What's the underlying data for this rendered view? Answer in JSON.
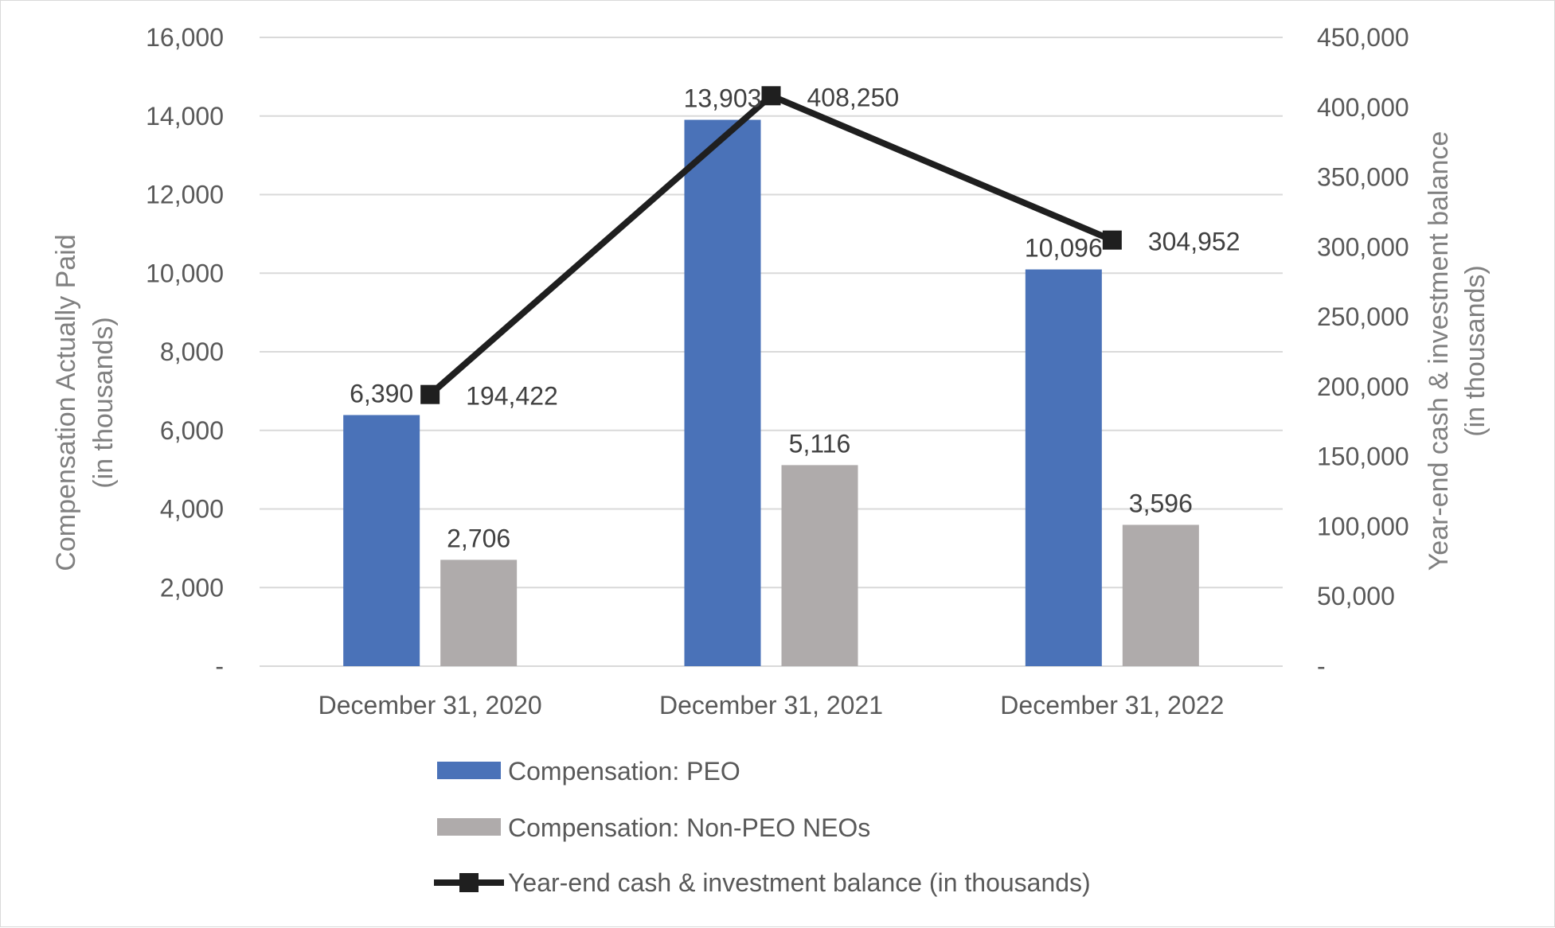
{
  "chart_data": {
    "type": "bar+line",
    "categories": [
      "December 31, 2020",
      "December 31, 2021",
      "December 31, 2022"
    ],
    "series": [
      {
        "name": "Compensation: PEO",
        "kind": "bar",
        "axis": "left",
        "color": "#4a72b8",
        "values": [
          6390,
          13903,
          10096
        ],
        "labels": [
          "6,390",
          "13,903",
          "10,096"
        ]
      },
      {
        "name": "Compensation: Non-PEO NEOs",
        "kind": "bar",
        "axis": "left",
        "color": "#afabab",
        "values": [
          2706,
          5116,
          3596
        ],
        "labels": [
          "2,706",
          "5,116",
          "3,596"
        ]
      },
      {
        "name": "Year-end cash & investment balance (in thousands)",
        "kind": "line",
        "axis": "right",
        "color": "#1f1f1f",
        "values": [
          194422,
          408250,
          304952
        ],
        "labels": [
          "194,422",
          "408,250",
          "304,952"
        ]
      }
    ],
    "left_axis": {
      "title_line1": "Compensation Actually Paid",
      "title_line2": "(in thousands)",
      "range": [
        0,
        16000
      ],
      "ticks": [
        0,
        2000,
        4000,
        6000,
        8000,
        10000,
        12000,
        14000,
        16000
      ],
      "tick_labels": [
        "-",
        "2,000",
        "4,000",
        "6,000",
        "8,000",
        "10,000",
        "12,000",
        "14,000",
        "16,000"
      ]
    },
    "right_axis": {
      "title_line1": "Year-end cash & investment balance",
      "title_line2": "(in thousands)",
      "range": [
        0,
        450000
      ],
      "ticks": [
        0,
        50000,
        100000,
        150000,
        200000,
        250000,
        300000,
        350000,
        400000,
        450000
      ],
      "tick_labels": [
        "-",
        "50,000",
        "100,000",
        "150,000",
        "200,000",
        "250,000",
        "300,000",
        "350,000",
        "400,000",
        "450,000"
      ]
    },
    "grid": true,
    "legend_position": "bottom"
  }
}
